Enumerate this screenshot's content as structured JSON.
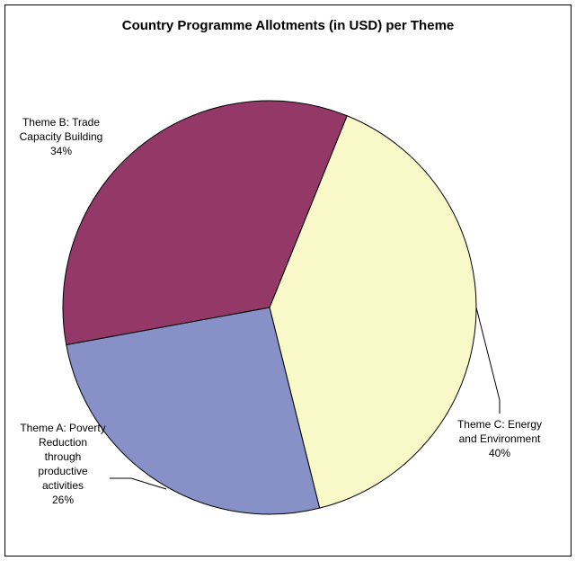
{
  "chart_data": {
    "type": "pie",
    "title": "Country Programme Allotments (in USD) per Theme",
    "slices": [
      {
        "label_lines": [
          "Theme C: Energy",
          "and Environment",
          "40%"
        ],
        "value": 40,
        "color": "#F8F8C8"
      },
      {
        "label_lines": [
          "Theme A: Poverty",
          "Reduction",
          "through",
          "productive",
          "activities",
          "26%"
        ],
        "value": 26,
        "color": "#8891C7"
      },
      {
        "label_lines": [
          "Theme B: Trade",
          "Capacity Building",
          "34%"
        ],
        "value": 34,
        "color": "#943868"
      }
    ],
    "legend": "none"
  }
}
